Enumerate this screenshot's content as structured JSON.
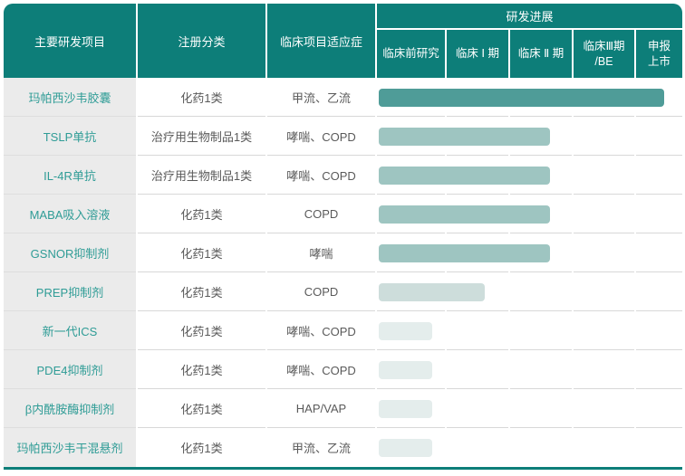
{
  "chart_data": {
    "type": "table",
    "title": "研发进展",
    "header": {
      "col_project": "主要研发项目",
      "col_category": "注册分类",
      "col_indication": "临床项目适应症",
      "group_progress": "研发进展",
      "stage_labels": [
        "临床前研究",
        "临床 Ⅰ 期",
        "临床 Ⅱ 期",
        "临床Ⅲ期\n/BE",
        "申报\n上市"
      ]
    },
    "stages": [
      "临床前研究",
      "临床Ⅰ期",
      "临床Ⅱ期",
      "临床Ⅲ期/BE",
      "申报上市"
    ],
    "rows": [
      {
        "project": "玛帕西沙韦胶囊",
        "category": "化药1类",
        "indication": "甲流、乙流",
        "progress_stage": "申报上市",
        "progress_units": 4.6,
        "bar_width_pct": 93.5,
        "bar_color": "#4f9c98"
      },
      {
        "project": "TSLP单抗",
        "category": "治疗用生物制品1类",
        "indication": "哮喘、COPD",
        "progress_stage": "临床Ⅱ期",
        "progress_units": 2.6,
        "bar_width_pct": 56.1,
        "bar_color": "#9ec5c1"
      },
      {
        "project": "IL-4R单抗",
        "category": "治疗用生物制品1类",
        "indication": "哮喘、COPD",
        "progress_stage": "临床Ⅱ期",
        "progress_units": 2.6,
        "bar_width_pct": 56.1,
        "bar_color": "#9ec5c1"
      },
      {
        "project": "MABA吸入溶液",
        "category": "化药1类",
        "indication": "COPD",
        "progress_stage": "临床Ⅱ期",
        "progress_units": 2.6,
        "bar_width_pct": 56.1,
        "bar_color": "#9ec5c1"
      },
      {
        "project": "GSNOR抑制剂",
        "category": "化药1类",
        "indication": "哮喘",
        "progress_stage": "临床Ⅱ期",
        "progress_units": 2.6,
        "bar_width_pct": 56.1,
        "bar_color": "#9ec5c1"
      },
      {
        "project": "PREP抑制剂",
        "category": "化药1类",
        "indication": "COPD",
        "progress_stage": "临床Ⅰ期",
        "progress_units": 1.6,
        "bar_width_pct": 34.7,
        "bar_color": "#cddddb"
      },
      {
        "project": "新一代ICS",
        "category": "化药1类",
        "indication": "哮喘、COPD",
        "progress_stage": "临床前研究",
        "progress_units": 0.8,
        "bar_width_pct": 17.5,
        "bar_color": "#e4edec"
      },
      {
        "project": "PDE4抑制剂",
        "category": "化药1类",
        "indication": "哮喘、COPD",
        "progress_stage": "临床前研究",
        "progress_units": 0.8,
        "bar_width_pct": 17.5,
        "bar_color": "#e4edec"
      },
      {
        "project": "β内酰胺酶抑制剂",
        "category": "化药1类",
        "indication": "HAP/VAP",
        "progress_stage": "临床前研究",
        "progress_units": 0.8,
        "bar_width_pct": 17.5,
        "bar_color": "#e4edec"
      },
      {
        "project": "玛帕西沙韦干混悬剂",
        "category": "化药1类",
        "indication": "甲流、乙流",
        "progress_stage": "临床前研究",
        "progress_units": 0.8,
        "bar_width_pct": 17.5,
        "bar_color": "#e4edec"
      }
    ],
    "colors": {
      "header_teal": "#0d7e79",
      "bar_dark": "#4f9c98",
      "bar_mid": "#9ec5c1",
      "bar_light": "#cddddb",
      "bar_faint": "#e4edec",
      "project_col_bg": "#ebebeb",
      "project_text": "#2f9c96",
      "body_text": "#5a5a5a",
      "divider": "#d8d8d8"
    }
  }
}
